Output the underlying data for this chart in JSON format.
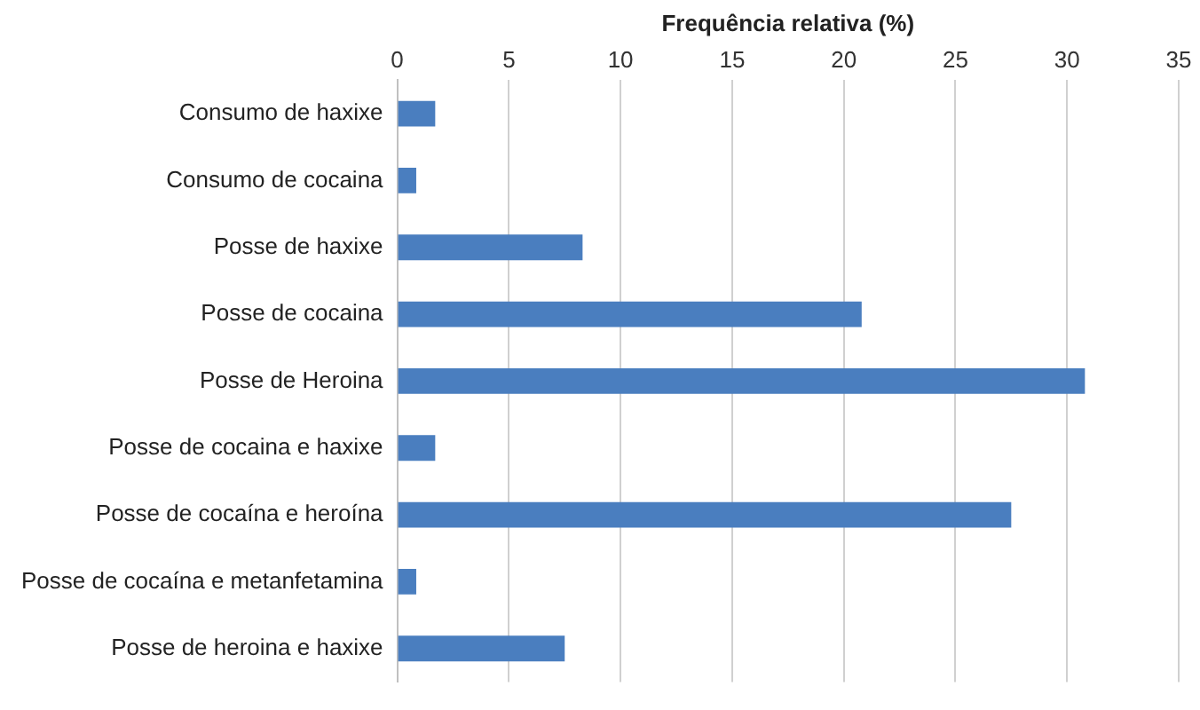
{
  "chart_data": {
    "type": "bar",
    "orientation": "horizontal",
    "xlabel": "Frequência relativa (%)",
    "categories": [
      "Consumo de haxixe",
      "Consumo de cocaina",
      "Posse de haxixe",
      "Posse de cocaina",
      "Posse de Heroina",
      "Posse de cocaina e haxixe",
      "Posse de cocaína e heroína",
      "Posse de cocaína e metanfetamina",
      "Posse de heroina e haxixe"
    ],
    "values": [
      1.7,
      0.85,
      8.3,
      20.8,
      30.8,
      1.7,
      27.5,
      0.85,
      7.5
    ],
    "color": "#4a7ebf",
    "xlim": [
      0,
      35
    ],
    "xticks": [
      0,
      5,
      10,
      15,
      20,
      25,
      30,
      35
    ],
    "grid": "x",
    "legend": false
  }
}
